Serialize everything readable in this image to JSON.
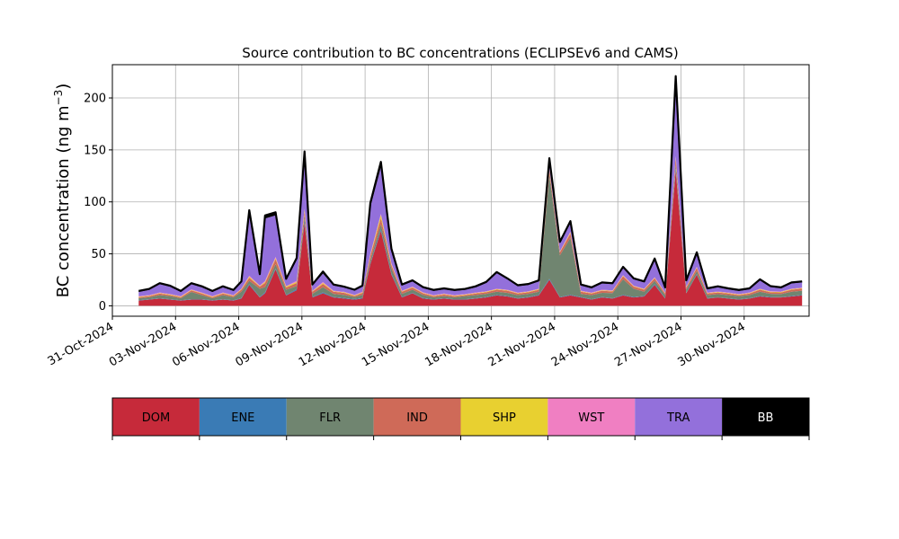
{
  "chart_data": {
    "type": "area",
    "stacked": true,
    "title": "Source contribution to BC concentrations (ECLIPSEv6 and CAMS)",
    "ylabel_text": "BC concentration (ng m",
    "ylabel_unit_sup": "−3",
    "ylabel_close": ")",
    "xlim": [
      "2024-10-31",
      "2024-12-03T02:00"
    ],
    "ylim": [
      -10,
      232
    ],
    "yticks": [
      0,
      50,
      100,
      150,
      200
    ],
    "grid": true,
    "xticks": [
      {
        "date": "2024-10-31",
        "label": "31-Oct-2024"
      },
      {
        "date": "2024-11-03",
        "label": "03-Nov-2024"
      },
      {
        "date": "2024-11-06",
        "label": "06-Nov-2024"
      },
      {
        "date": "2024-11-09",
        "label": "09-Nov-2024"
      },
      {
        "date": "2024-11-12",
        "label": "12-Nov-2024"
      },
      {
        "date": "2024-11-15",
        "label": "15-Nov-2024"
      },
      {
        "date": "2024-11-18",
        "label": "18-Nov-2024"
      },
      {
        "date": "2024-11-21",
        "label": "21-Nov-2024"
      },
      {
        "date": "2024-11-24",
        "label": "24-Nov-2024"
      },
      {
        "date": "2024-11-27",
        "label": "27-Nov-2024"
      },
      {
        "date": "2024-11-30",
        "label": "30-Nov-2024"
      }
    ],
    "x": [
      "2024-11-01T06:00",
      "2024-11-01T18:00",
      "2024-11-02T06:00",
      "2024-11-02T18:00",
      "2024-11-03T06:00",
      "2024-11-03T18:00",
      "2024-11-04T06:00",
      "2024-11-04T18:00",
      "2024-11-05T06:00",
      "2024-11-05T18:00",
      "2024-11-06T03:00",
      "2024-11-06T12:00",
      "2024-11-07T00:00",
      "2024-11-07T06:00",
      "2024-11-07T18:00",
      "2024-11-08T06:00",
      "2024-11-08T18:00",
      "2024-11-09T03:00",
      "2024-11-09T12:00",
      "2024-11-10T00:00",
      "2024-11-10T12:00",
      "2024-11-11T00:00",
      "2024-11-11T12:00",
      "2024-11-11T21:00",
      "2024-11-12T06:00",
      "2024-11-12T18:00",
      "2024-11-13T06:00",
      "2024-11-13T18:00",
      "2024-11-14T06:00",
      "2024-11-14T18:00",
      "2024-11-15T06:00",
      "2024-11-15T18:00",
      "2024-11-16T06:00",
      "2024-11-16T18:00",
      "2024-11-17T06:00",
      "2024-11-17T18:00",
      "2024-11-18T06:00",
      "2024-11-18T18:00",
      "2024-11-19T06:00",
      "2024-11-19T18:00",
      "2024-11-20T06:00",
      "2024-11-20T18:00",
      "2024-11-21T06:00",
      "2024-11-21T18:00",
      "2024-11-22T06:00",
      "2024-11-22T18:00",
      "2024-11-23T06:00",
      "2024-11-23T18:00",
      "2024-11-24T06:00",
      "2024-11-24T18:00",
      "2024-11-25T06:00",
      "2024-11-25T18:00",
      "2024-11-26T06:00",
      "2024-11-26T18:00",
      "2024-11-27T06:00",
      "2024-11-27T18:00",
      "2024-11-28T06:00",
      "2024-11-28T18:00",
      "2024-11-29T06:00",
      "2024-11-29T18:00",
      "2024-11-30T06:00",
      "2024-11-30T18:00",
      "2024-12-01T06:00",
      "2024-12-01T18:00",
      "2024-12-02T06:00",
      "2024-12-02T18:00"
    ],
    "series": [
      {
        "name": "DOM",
        "color": "#c62a3a",
        "values": [
          5,
          6,
          7,
          6,
          5,
          6,
          6,
          5,
          6,
          5,
          7,
          20,
          8,
          12,
          35,
          10,
          15,
          80,
          8,
          12,
          8,
          7,
          6,
          7,
          40,
          72,
          30,
          8,
          12,
          7,
          6,
          7,
          6,
          6,
          7,
          8,
          10,
          9,
          7,
          8,
          10,
          25,
          8,
          10,
          8,
          6,
          8,
          7,
          10,
          8,
          9,
          20,
          7,
          130,
          12,
          30,
          7,
          8,
          7,
          6,
          7,
          9,
          8,
          8,
          9,
          10
        ]
      },
      {
        "name": "ENE",
        "color": "#3a7bb5",
        "values": [
          0.3,
          0.3,
          0.3,
          0.3,
          0.3,
          0.3,
          0.3,
          0.3,
          0.3,
          0.3,
          0.5,
          1,
          0.5,
          1,
          1,
          0.5,
          1,
          1.5,
          0.5,
          1,
          0.5,
          0.5,
          0.5,
          0.5,
          1,
          1.5,
          1,
          0.5,
          0.5,
          0.5,
          0.3,
          0.3,
          0.3,
          0.3,
          0.3,
          0.5,
          0.5,
          0.5,
          0.3,
          0.5,
          0.5,
          1,
          0.5,
          0.5,
          0.5,
          0.3,
          0.5,
          0.3,
          0.5,
          0.5,
          0.5,
          1,
          0.3,
          2,
          0.5,
          0.5,
          0.3,
          0.3,
          0.3,
          0.3,
          0.3,
          0.5,
          0.5,
          0.3,
          0.5,
          0.5
        ]
      },
      {
        "name": "FLR",
        "color": "#708570",
        "values": [
          2,
          2,
          3,
          3,
          2,
          7,
          4,
          2,
          4,
          3,
          6,
          3,
          8,
          5,
          4,
          5,
          3,
          5,
          3,
          5,
          3,
          3,
          2,
          3,
          3,
          5,
          5,
          3,
          3,
          3,
          2,
          2,
          2,
          3,
          3,
          3,
          3,
          3,
          3,
          3,
          3,
          100,
          40,
          55,
          3,
          4,
          4,
          5,
          15,
          8,
          4,
          3,
          3,
          4,
          3,
          3,
          3,
          3,
          3,
          3,
          3,
          4,
          3,
          3,
          4,
          4
        ]
      },
      {
        "name": "IND",
        "color": "#cf6a58",
        "values": [
          1,
          1,
          1.5,
          1,
          1,
          1.5,
          1.5,
          1,
          1.5,
          1,
          2,
          3,
          2,
          4,
          5,
          2,
          3,
          4,
          2,
          3,
          2,
          2,
          1,
          2,
          4,
          6,
          3,
          2,
          2,
          1.5,
          1,
          1.5,
          1,
          1,
          1.5,
          1.5,
          2,
          2,
          1.5,
          1.5,
          2,
          4,
          3,
          4,
          2,
          1.5,
          2,
          1.5,
          3,
          2,
          2,
          2.5,
          1.5,
          6,
          2,
          3,
          1.5,
          1.5,
          1.5,
          1,
          1.5,
          2,
          1.5,
          1.5,
          2,
          2
        ]
      },
      {
        "name": "SHP",
        "color": "#e8d030",
        "values": [
          0.5,
          0.5,
          0.5,
          0.5,
          0.5,
          0.5,
          0.5,
          0.5,
          0.5,
          0.5,
          0.5,
          1,
          0.5,
          1,
          1,
          1,
          1,
          2,
          0.5,
          1,
          0.5,
          0.5,
          0.5,
          0.5,
          1,
          3,
          1,
          0.5,
          0.5,
          0.5,
          0.5,
          0.5,
          0.5,
          0.5,
          0.5,
          0.5,
          0.5,
          0.5,
          0.5,
          0.5,
          0.5,
          1,
          0.5,
          1,
          0.5,
          0.5,
          0.5,
          0.5,
          0.5,
          0.5,
          0.5,
          0.5,
          0.5,
          1,
          0.5,
          0.5,
          0.5,
          0.5,
          0.5,
          0.5,
          0.5,
          0.5,
          0.5,
          0.5,
          0.5,
          0.5
        ]
      },
      {
        "name": "WST",
        "color": "#f07fc2",
        "values": [
          0.5,
          0.5,
          0.5,
          0.5,
          0.5,
          0.5,
          0.5,
          0.5,
          0.5,
          0.5,
          0.5,
          1,
          0.5,
          1,
          1,
          0.5,
          1,
          1,
          0.5,
          1,
          0.5,
          0.5,
          0.5,
          0.5,
          1,
          1,
          1,
          0.5,
          0.5,
          0.5,
          0.5,
          0.5,
          0.5,
          0.5,
          0.5,
          0.5,
          0.5,
          0.5,
          0.5,
          0.5,
          0.5,
          1,
          0.5,
          1,
          0.5,
          0.5,
          0.5,
          0.5,
          0.5,
          0.5,
          0.5,
          0.5,
          0.5,
          1,
          0.5,
          0.5,
          0.5,
          0.5,
          0.5,
          0.5,
          0.5,
          0.5,
          0.5,
          0.5,
          0.5,
          0.5
        ]
      },
      {
        "name": "TRA",
        "color": "#9370db",
        "values": [
          4,
          5,
          8,
          7,
          4,
          5,
          5,
          4,
          5,
          4,
          6,
          60,
          10,
          60,
          40,
          6,
          20,
          50,
          5,
          8,
          5,
          4,
          4,
          5,
          45,
          45,
          12,
          5,
          5,
          4,
          4,
          4,
          4,
          4,
          5,
          8,
          15,
          10,
          6,
          6,
          7,
          7,
          8,
          8,
          5,
          4,
          6,
          6,
          7,
          6,
          6,
          16,
          4,
          70,
          5,
          12,
          3,
          4,
          3,
          3,
          3,
          8,
          4,
          3,
          5,
          5
        ]
      },
      {
        "name": "BB",
        "color": "#000000",
        "values": [
          1,
          1,
          1,
          1,
          1,
          1,
          1,
          1,
          1,
          1,
          1,
          3,
          1,
          3,
          3,
          1,
          2,
          5,
          1,
          2,
          1,
          1,
          1,
          1,
          4,
          5,
          2,
          1,
          1,
          1,
          1,
          1,
          1,
          1,
          1,
          1,
          1,
          1,
          1,
          1,
          1,
          3,
          1,
          2,
          1,
          1,
          1,
          1,
          1,
          1,
          1,
          2,
          1,
          7,
          1,
          2,
          1,
          1,
          1,
          1,
          1,
          1,
          1,
          1,
          1,
          1
        ]
      }
    ],
    "legend": {
      "placement": "below",
      "entries": [
        {
          "name": "DOM",
          "color": "#c62a3a",
          "text_color": "#000000"
        },
        {
          "name": "ENE",
          "color": "#3a7bb5",
          "text_color": "#000000"
        },
        {
          "name": "FLR",
          "color": "#708570",
          "text_color": "#000000"
        },
        {
          "name": "IND",
          "color": "#cf6a58",
          "text_color": "#000000"
        },
        {
          "name": "SHP",
          "color": "#e8d030",
          "text_color": "#000000"
        },
        {
          "name": "WST",
          "color": "#f07fc2",
          "text_color": "#000000"
        },
        {
          "name": "TRA",
          "color": "#9370db",
          "text_color": "#000000"
        },
        {
          "name": "BB",
          "color": "#000000",
          "text_color": "#ffffff"
        }
      ]
    }
  }
}
